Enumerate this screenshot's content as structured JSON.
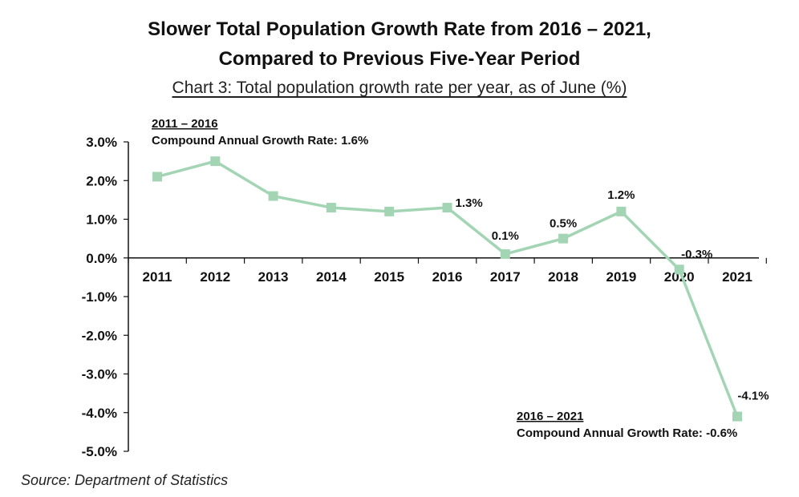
{
  "title_line1": "Slower Total Population Growth Rate from 2016 – 2021,",
  "title_line2": "Compared to Previous Five-Year Period",
  "subtitle": "Chart 3: Total population growth rate per year, as of June (%)",
  "source": "Source: Department of Statistics",
  "chart_data": {
    "type": "line",
    "title": "Slower Total Population Growth Rate from 2016 – 2021, Compared to Previous Five-Year Period",
    "subtitle": "Chart 3: Total population growth rate per year, as of June (%)",
    "x": [
      "2011",
      "2012",
      "2013",
      "2014",
      "2015",
      "2016",
      "2017",
      "2018",
      "2019",
      "2020",
      "2021"
    ],
    "series": [
      {
        "values": [
          2.1,
          2.5,
          1.6,
          1.3,
          1.2,
          1.3,
          0.1,
          0.5,
          1.2,
          -0.3,
          -4.1
        ],
        "color": "#a3d5b4"
      }
    ],
    "data_labels": [
      {
        "index": 5,
        "text": "1.3%"
      },
      {
        "index": 6,
        "text": "0.1%"
      },
      {
        "index": 7,
        "text": "0.5%"
      },
      {
        "index": 8,
        "text": "1.2%"
      },
      {
        "index": 9,
        "text": "-0.3%"
      },
      {
        "index": 10,
        "text": "-4.1%"
      }
    ],
    "yticks": [
      3,
      2,
      1,
      0,
      -1,
      -2,
      -3,
      -4,
      -5
    ],
    "ytick_labels": [
      "3.0%",
      "2.0%",
      "1.0%",
      "0.0%",
      "-1.0%",
      "-2.0%",
      "-3.0%",
      "-4.0%",
      "-5.0%"
    ],
    "ylim": [
      -5,
      3
    ],
    "xlabel": "",
    "ylabel": "",
    "grid": false,
    "annotations": [
      {
        "period": "2011 – 2016",
        "text": "Compound Annual Growth Rate: 1.6%"
      },
      {
        "period": "2016 – 2021",
        "text": "Compound Annual Growth Rate: -0.6%"
      }
    ]
  }
}
